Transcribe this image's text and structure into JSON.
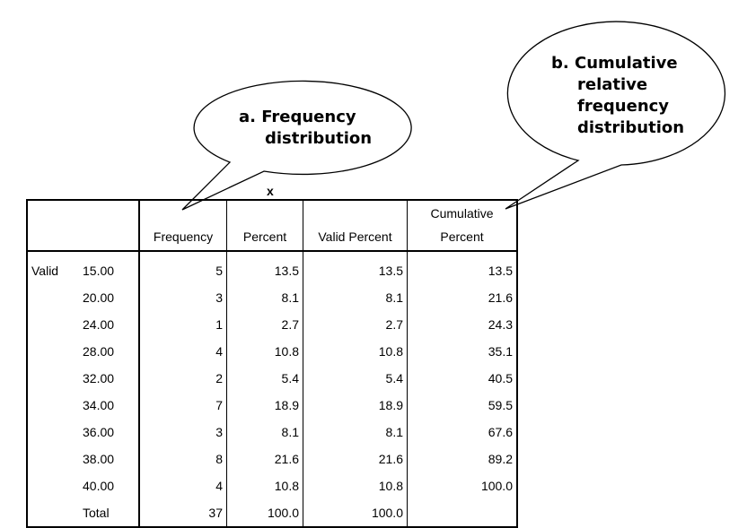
{
  "callouts": {
    "a": {
      "line1": "a.  Frequency",
      "line2": "distribution"
    },
    "b": {
      "line1": "b.  Cumulative",
      "line2": "relative",
      "line3": "frequency",
      "line4": "distribution"
    }
  },
  "table": {
    "title": "x",
    "headers": {
      "frequency": "Frequency",
      "percent": "Percent",
      "valid_percent": "Valid Percent",
      "cumulative_line1": "Cumulative",
      "cumulative_line2": "Percent"
    },
    "group_label": "Valid",
    "rows": [
      {
        "value": "15.00",
        "frequency": "5",
        "percent": "13.5",
        "valid_percent": "13.5",
        "cumulative_percent": "13.5"
      },
      {
        "value": "20.00",
        "frequency": "3",
        "percent": "8.1",
        "valid_percent": "8.1",
        "cumulative_percent": "21.6"
      },
      {
        "value": "24.00",
        "frequency": "1",
        "percent": "2.7",
        "valid_percent": "2.7",
        "cumulative_percent": "24.3"
      },
      {
        "value": "28.00",
        "frequency": "4",
        "percent": "10.8",
        "valid_percent": "10.8",
        "cumulative_percent": "35.1"
      },
      {
        "value": "32.00",
        "frequency": "2",
        "percent": "5.4",
        "valid_percent": "5.4",
        "cumulative_percent": "40.5"
      },
      {
        "value": "34.00",
        "frequency": "7",
        "percent": "18.9",
        "valid_percent": "18.9",
        "cumulative_percent": "59.5"
      },
      {
        "value": "36.00",
        "frequency": "3",
        "percent": "8.1",
        "valid_percent": "8.1",
        "cumulative_percent": "67.6"
      },
      {
        "value": "38.00",
        "frequency": "8",
        "percent": "21.6",
        "valid_percent": "21.6",
        "cumulative_percent": "89.2"
      },
      {
        "value": "40.00",
        "frequency": "4",
        "percent": "10.8",
        "valid_percent": "10.8",
        "cumulative_percent": "100.0"
      },
      {
        "value": "Total",
        "frequency": "37",
        "percent": "100.0",
        "valid_percent": "100.0",
        "cumulative_percent": ""
      }
    ]
  }
}
